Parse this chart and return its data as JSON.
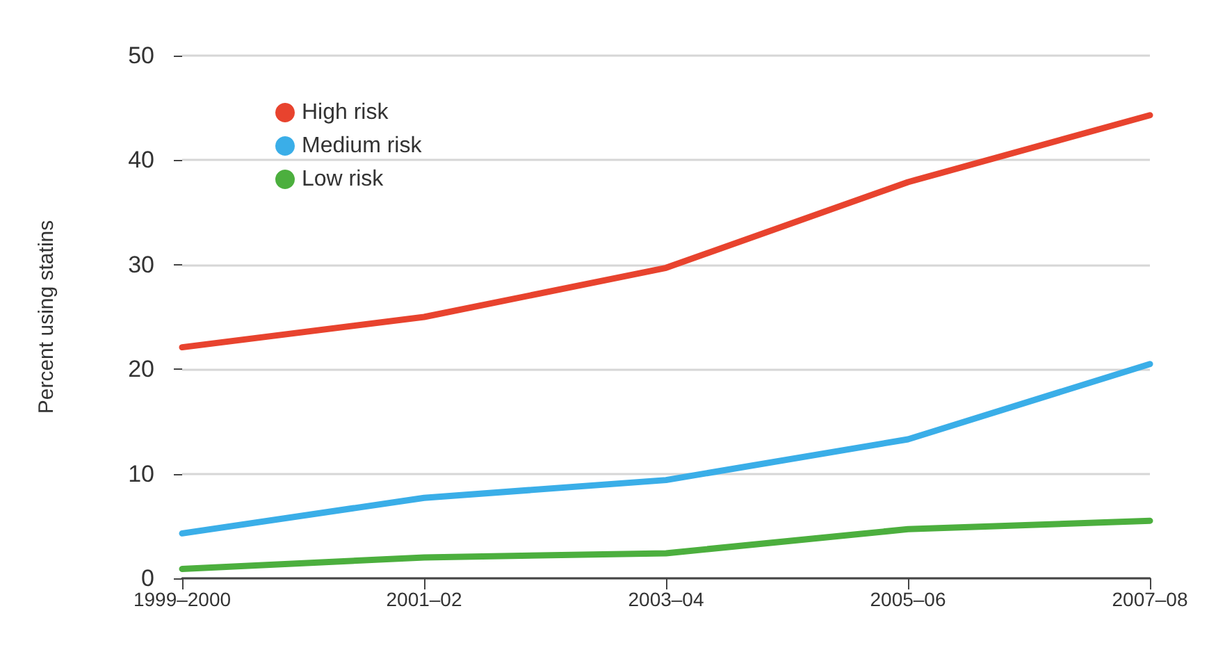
{
  "chart_data": {
    "type": "line",
    "ylabel": "Percent using statins",
    "categories": [
      "1999–2000",
      "2001–02",
      "2003–04",
      "2005–06",
      "2007–08"
    ],
    "series": [
      {
        "name": "High risk",
        "color": "#e8432e",
        "values": [
          22.1,
          25.0,
          29.7,
          37.9,
          44.3
        ]
      },
      {
        "name": "Medium risk",
        "color": "#3aaee8",
        "values": [
          4.3,
          7.7,
          9.4,
          13.3,
          20.5
        ]
      },
      {
        "name": "Low risk",
        "color": "#4caf3e",
        "values": [
          0.9,
          2.0,
          2.4,
          4.7,
          5.5
        ]
      }
    ],
    "ylim": [
      0,
      50
    ],
    "yticks": [
      0,
      10,
      20,
      30,
      40,
      50
    ],
    "grid": "y",
    "legend": "top left",
    "marker": "none",
    "line_style": "solid"
  }
}
